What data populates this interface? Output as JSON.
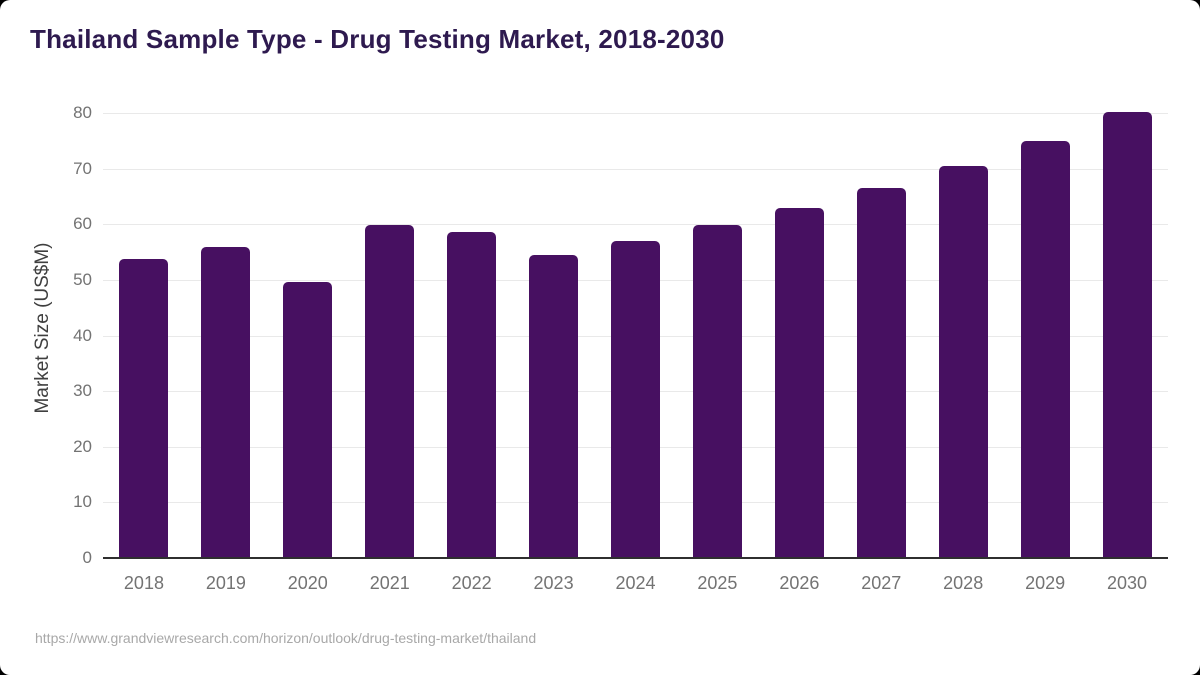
{
  "header": {
    "title": "Thailand Sample Type - Drug Testing Market, 2018-2030"
  },
  "footer": {
    "source_url": "https://www.grandviewresearch.com/horizon/outlook/drug-testing-market/thailand"
  },
  "chart_data": {
    "type": "bar",
    "title": "Thailand Sample Type - Drug Testing Market, 2018-2030",
    "categories": [
      "2018",
      "2019",
      "2020",
      "2021",
      "2022",
      "2023",
      "2024",
      "2025",
      "2026",
      "2027",
      "2028",
      "2029",
      "2030"
    ],
    "values": [
      53.7,
      56.0,
      49.6,
      59.8,
      58.6,
      54.4,
      56.9,
      59.8,
      63.0,
      66.5,
      70.5,
      75.0,
      80.2
    ],
    "xlabel": "",
    "ylabel": "Market Size (US$M)",
    "ylim": [
      0,
      80
    ],
    "yticks": [
      0,
      10,
      20,
      30,
      40,
      50,
      60,
      70,
      80
    ],
    "grid": "horizontal",
    "legend": "none",
    "colors": {
      "bar": "#471061",
      "title": "#2e1a4f",
      "axis_line": "#2f2f2f",
      "tick_label": "#737373",
      "y_axis_title": "#3f3f3f",
      "grid_line": "#e9e9e9",
      "source_text": "#a8a8a8",
      "card_background": "#ffffff",
      "frame_background": "#000000"
    }
  }
}
